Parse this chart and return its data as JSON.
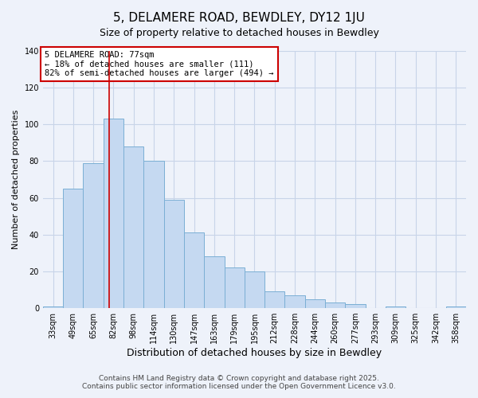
{
  "title": "5, DELAMERE ROAD, BEWDLEY, DY12 1JU",
  "subtitle": "Size of property relative to detached houses in Bewdley",
  "xlabel": "Distribution of detached houses by size in Bewdley",
  "ylabel": "Number of detached properties",
  "bar_labels": [
    "33sqm",
    "49sqm",
    "65sqm",
    "82sqm",
    "98sqm",
    "114sqm",
    "130sqm",
    "147sqm",
    "163sqm",
    "179sqm",
    "195sqm",
    "212sqm",
    "228sqm",
    "244sqm",
    "260sqm",
    "277sqm",
    "293sqm",
    "309sqm",
    "325sqm",
    "342sqm",
    "358sqm"
  ],
  "bar_values": [
    1,
    65,
    79,
    103,
    88,
    80,
    59,
    41,
    28,
    22,
    20,
    9,
    7,
    5,
    3,
    2,
    0,
    1,
    0,
    0,
    1
  ],
  "bar_color": "#c5d9f1",
  "bar_edge_color": "#7bafd4",
  "vline_x": 2.77,
  "vline_color": "#cc0000",
  "annotation_text": "5 DELAMERE ROAD: 77sqm\n← 18% of detached houses are smaller (111)\n82% of semi-detached houses are larger (494) →",
  "annotation_box_color": "#ffffff",
  "annotation_box_edge": "#cc0000",
  "ylim": [
    0,
    140
  ],
  "yticks": [
    0,
    20,
    40,
    60,
    80,
    100,
    120,
    140
  ],
  "background_color": "#eef2fa",
  "grid_color": "#c8d4e8",
  "footer_text": "Contains HM Land Registry data © Crown copyright and database right 2025.\nContains public sector information licensed under the Open Government Licence v3.0.",
  "title_fontsize": 11,
  "subtitle_fontsize": 9,
  "xlabel_fontsize": 9,
  "ylabel_fontsize": 8,
  "tick_fontsize": 7,
  "annotation_fontsize": 7.5,
  "footer_fontsize": 6.5
}
